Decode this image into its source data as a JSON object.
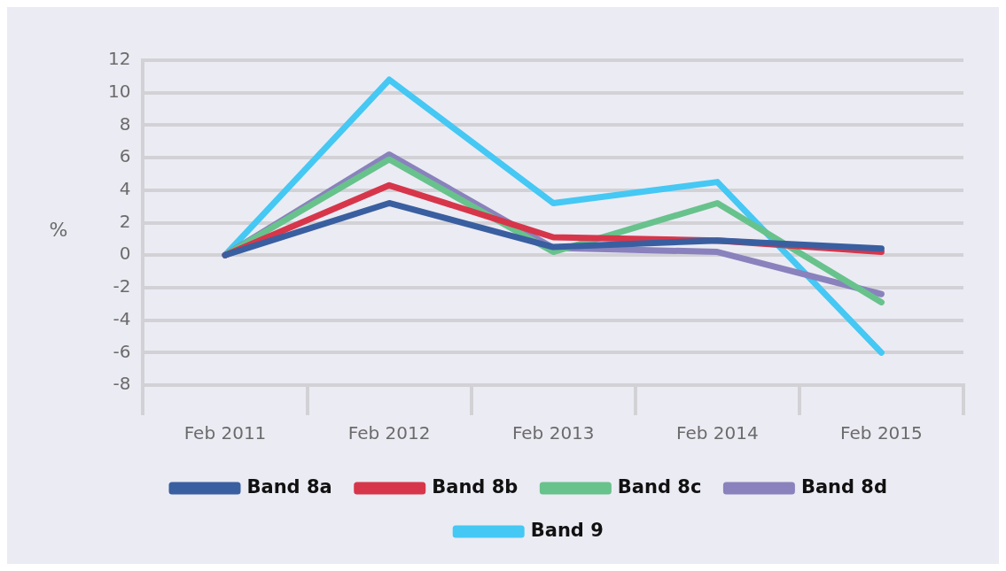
{
  "chart_data": {
    "type": "line",
    "ylabel": "%",
    "categories": [
      "Feb 2011",
      "Feb 2012",
      "Feb 2013",
      "Feb 2014",
      "Feb 2015"
    ],
    "series": [
      {
        "name": "Band 8a",
        "color": "#3a5fa0",
        "values": [
          0,
          3.2,
          0.5,
          0.9,
          0.4
        ]
      },
      {
        "name": "Band 8b",
        "color": "#d7364a",
        "values": [
          0,
          4.3,
          1.1,
          0.9,
          0.2
        ]
      },
      {
        "name": "Band 8c",
        "color": "#68c28c",
        "values": [
          0,
          5.9,
          0.2,
          3.2,
          -2.9
        ]
      },
      {
        "name": "Band 8d",
        "color": "#8a82bd",
        "values": [
          0,
          6.2,
          0.45,
          0.2,
          -2.4
        ]
      },
      {
        "name": "Band 9",
        "color": "#45c8f3",
        "values": [
          0,
          10.8,
          3.2,
          4.5,
          -6
        ]
      }
    ],
    "ylim": [
      -8,
      12
    ],
    "yticks": [
      -8,
      -6,
      -4,
      -2,
      0,
      2,
      4,
      6,
      8,
      10,
      12
    ],
    "grid": "y",
    "legend": "bottom",
    "marker": "none",
    "line_style": "solid"
  }
}
